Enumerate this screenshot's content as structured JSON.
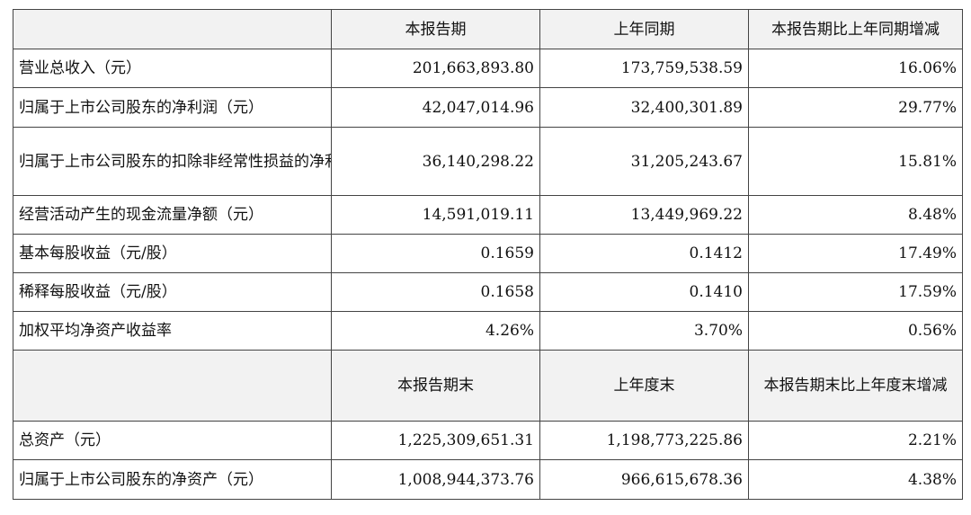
{
  "table": {
    "header1": [
      "本报告期",
      "上年同期",
      "本报告期比上年同期增减"
    ],
    "rows1": [
      {
        "label": "营业总收入（元）",
        "current": "201,663,893.80",
        "prior": "173,759,538.59",
        "change": "16.06%"
      },
      {
        "label": "归属于上市公司股东的净利润（元）",
        "current": "42,047,014.96",
        "prior": "32,400,301.89",
        "change": "29.77%"
      },
      {
        "label": "归属于上市公司股东的扣除非经常性损益的净利润（元）",
        "current": "36,140,298.22",
        "prior": "31,205,243.67",
        "change": "15.81%"
      },
      {
        "label": "经营活动产生的现金流量净额（元）",
        "current": "14,591,019.11",
        "prior": "13,449,969.22",
        "change": "8.48%"
      },
      {
        "label": "基本每股收益（元/股）",
        "current": "0.1659",
        "prior": "0.1412",
        "change": "17.49%"
      },
      {
        "label": "稀释每股收益（元/股）",
        "current": "0.1658",
        "prior": "0.1410",
        "change": "17.59%"
      },
      {
        "label": "加权平均净资产收益率",
        "current": "4.26%",
        "prior": "3.70%",
        "change": "0.56%"
      }
    ],
    "header2": [
      "本报告期末",
      "上年度末",
      "本报告期末比上年度末增减"
    ],
    "rows2": [
      {
        "label": "总资产（元）",
        "current": "1,225,309,651.31",
        "prior": "1,198,773,225.86",
        "change": "2.21%"
      },
      {
        "label": "归属于上市公司股东的净资产（元）",
        "current": "1,008,944,373.76",
        "prior": "966,615,678.36",
        "change": "4.38%"
      }
    ]
  }
}
